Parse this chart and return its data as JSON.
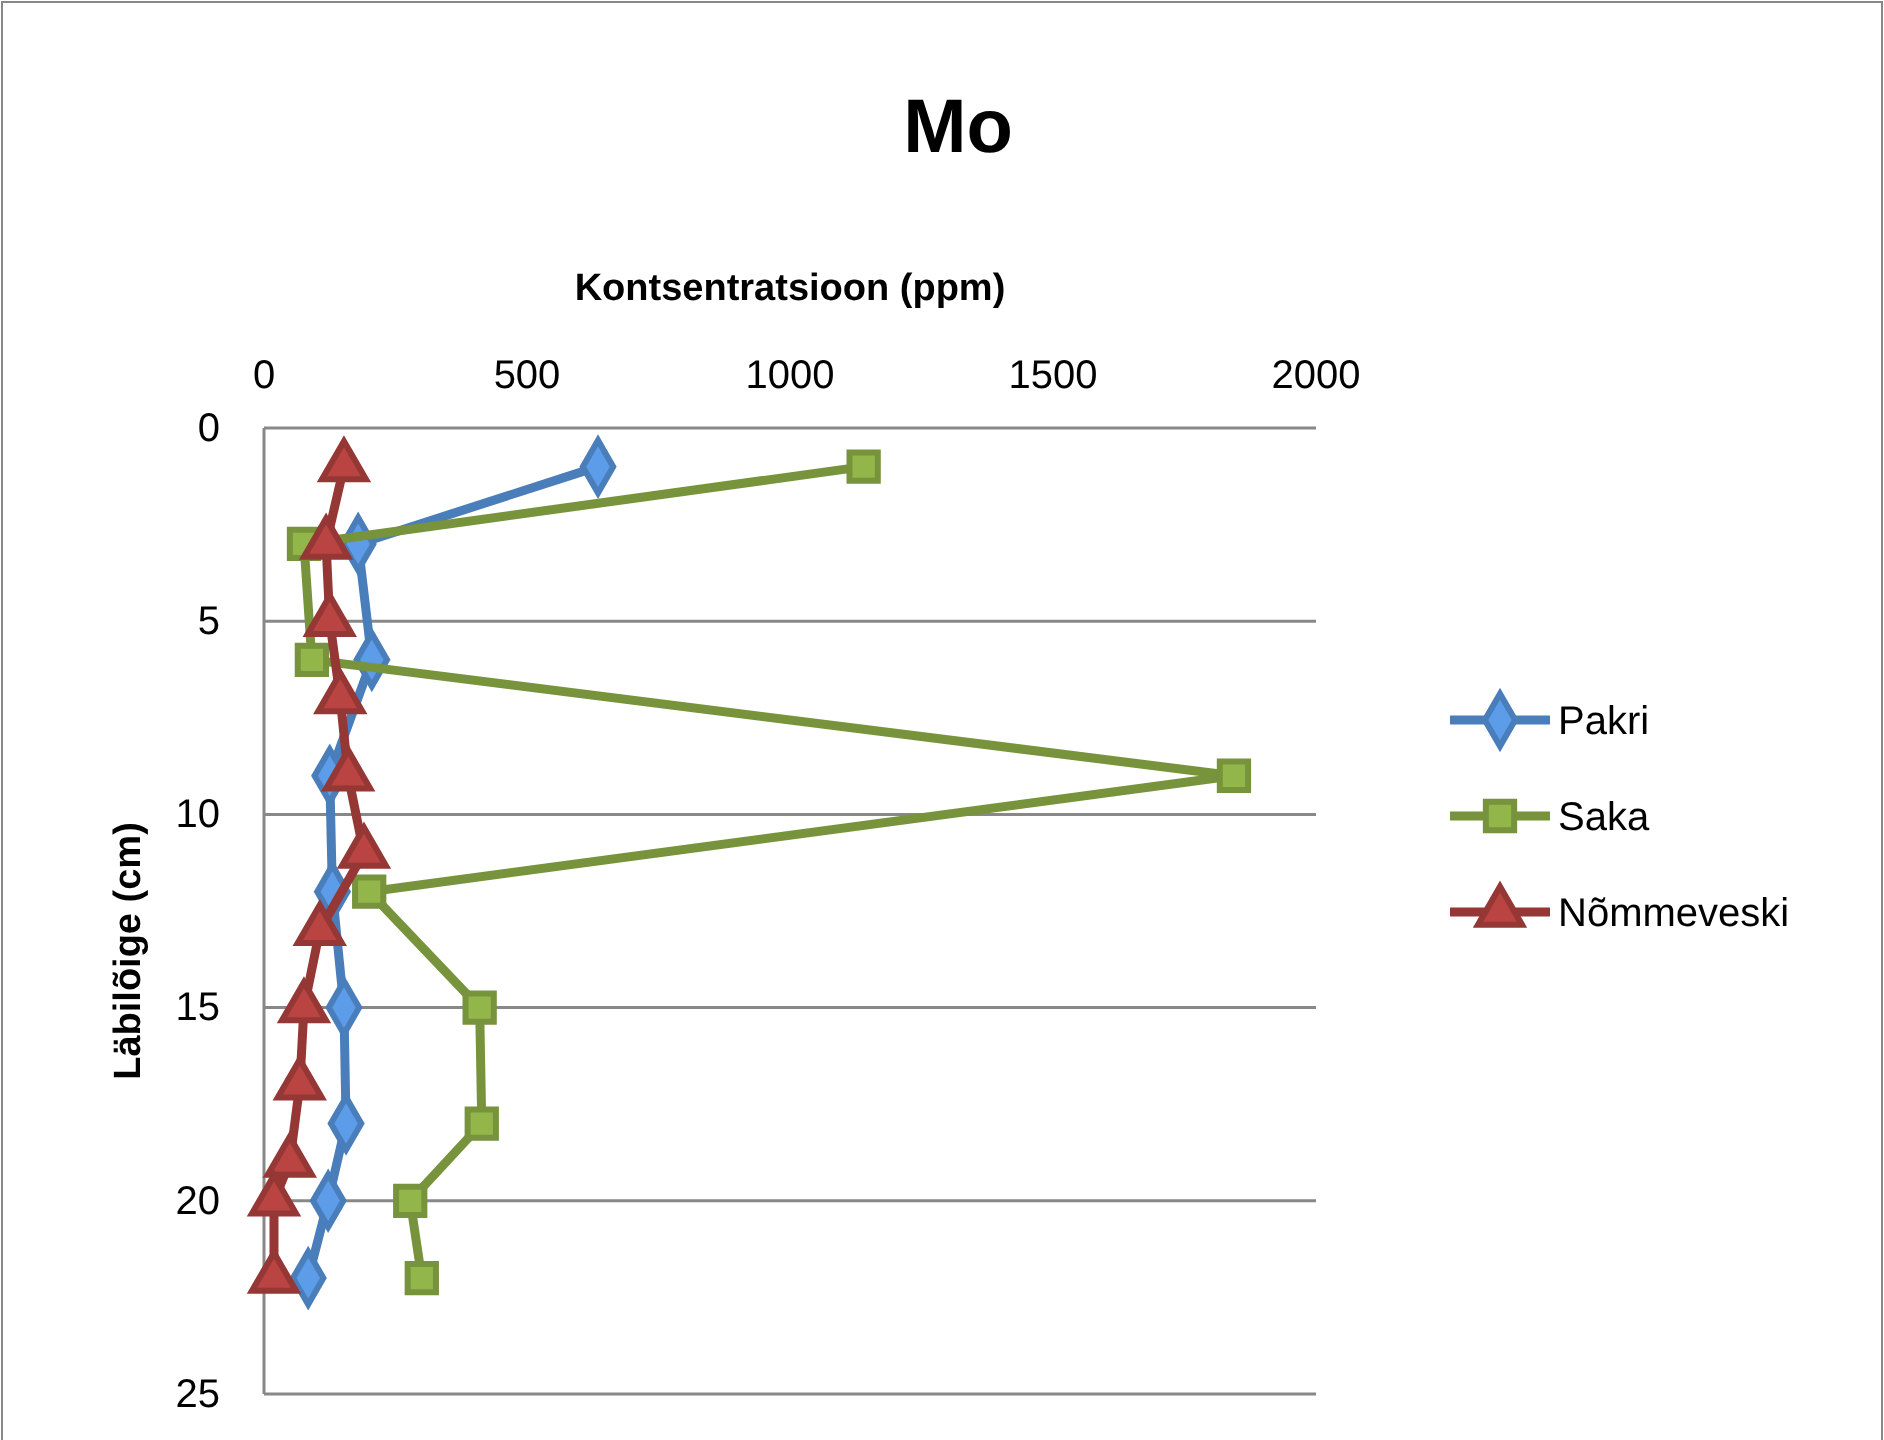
{
  "chart_data": {
    "type": "line",
    "title": "Mo",
    "xlabel": "Kontsentratsioon (ppm)",
    "ylabel": "Läbilõige (cm)",
    "xlim": [
      0,
      2000
    ],
    "xticks": [
      0,
      500,
      1000,
      1500,
      2000
    ],
    "ylim": [
      25,
      0
    ],
    "yticks": [
      0,
      5,
      10,
      15,
      20,
      25
    ],
    "grid": "y",
    "legend": "right",
    "line_style": "solid",
    "series": [
      {
        "name": "Pakri",
        "color": "#4a7ebb",
        "marker": "diamond",
        "x": [
          635,
          179,
          205,
          125,
          130,
          152,
          156,
          122,
          84
        ],
        "values": [
          1,
          3,
          6,
          9,
          12,
          15,
          18,
          20,
          22
        ]
      },
      {
        "name": "Saka",
        "color": "#77933c",
        "marker": "square",
        "x": [
          1140,
          76,
          91,
          1844,
          200,
          410,
          414,
          278,
          300
        ],
        "values": [
          1,
          3,
          6,
          9,
          12,
          15,
          18,
          20,
          22
        ]
      },
      {
        "name": "Nõmmeveski",
        "color": "#953735",
        "marker": "triangle",
        "x": [
          152,
          118,
          125,
          145,
          160,
          190,
          106,
          76,
          68,
          49,
          19,
          19
        ],
        "values": [
          1,
          3,
          5,
          7,
          9,
          11,
          13,
          15,
          17,
          19,
          20,
          22
        ]
      }
    ]
  }
}
